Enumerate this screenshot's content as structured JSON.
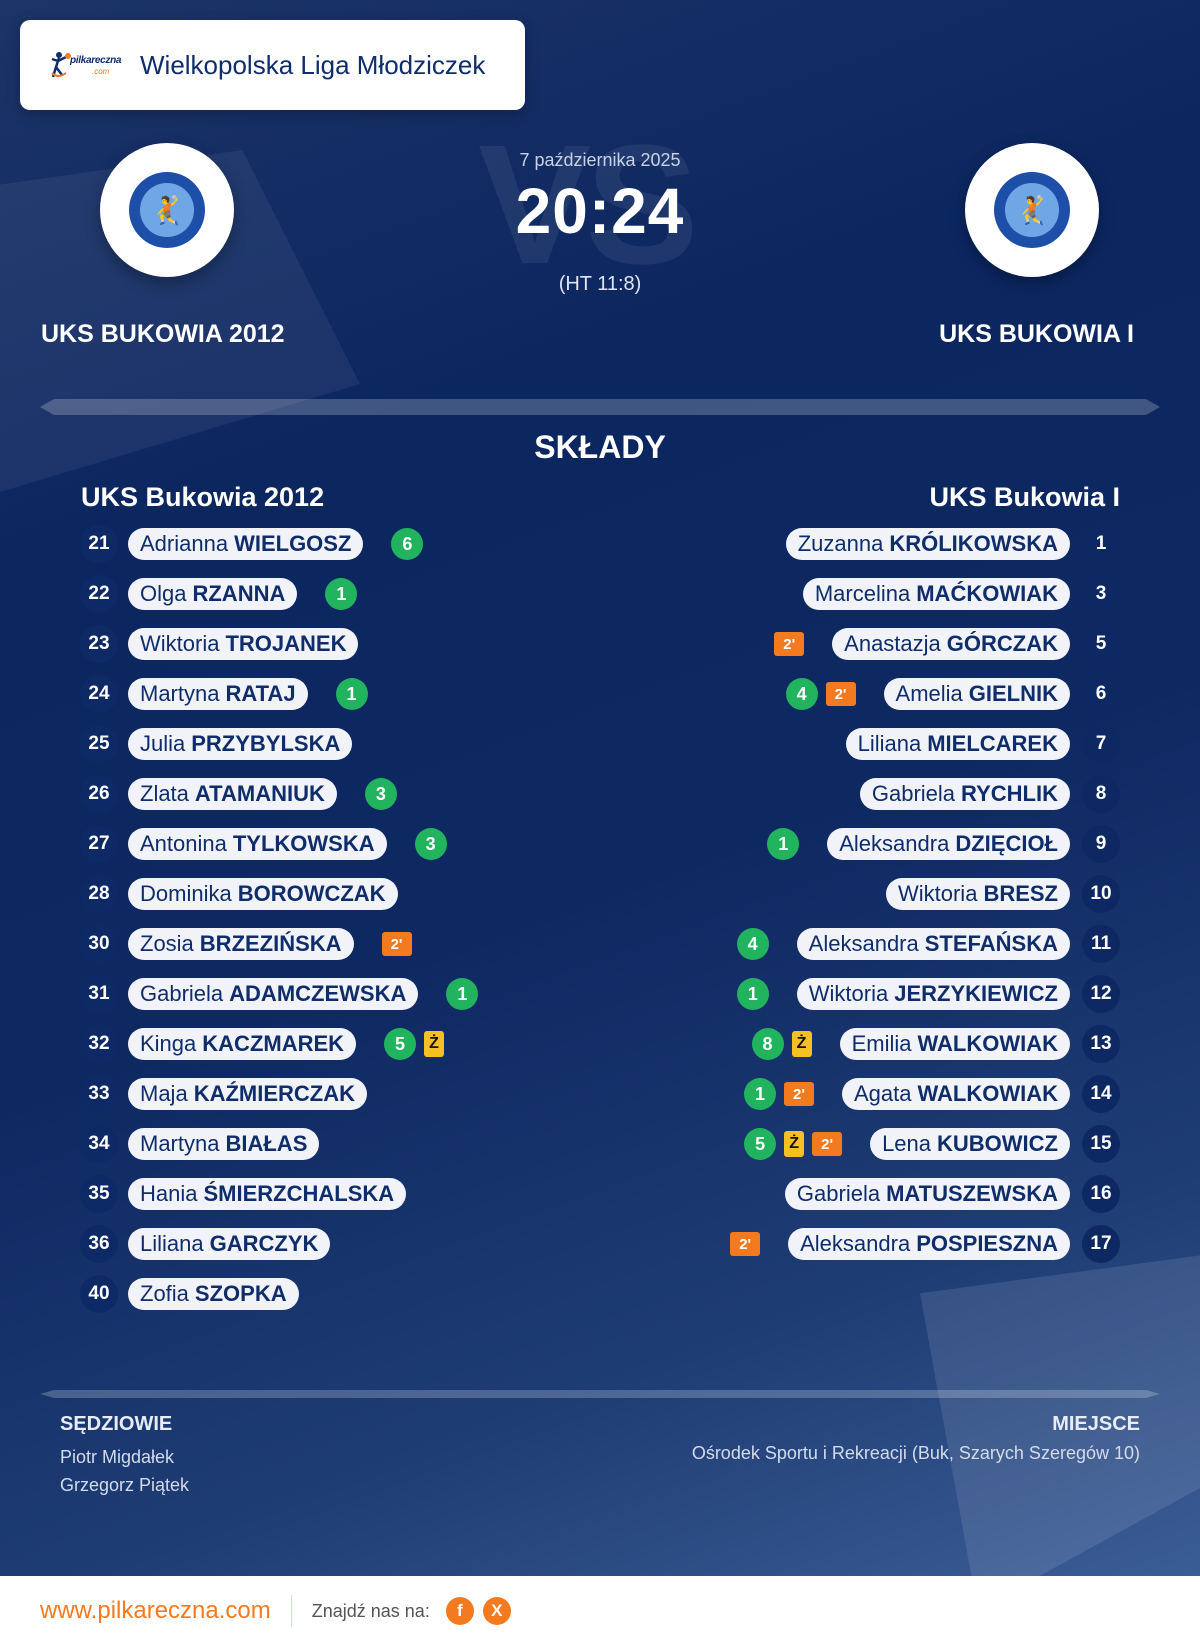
{
  "header": {
    "brand_logo_text": "pilkareczna",
    "brand_logo_suffix": ".com",
    "league_title": "Wielkopolska Liga Młodziczek"
  },
  "match": {
    "date": "7 października 2025",
    "score": "20:24",
    "halftime": "(HT 11:8)",
    "watermark": "VS",
    "home_team": "UKS BUKOWIA 2012",
    "away_team": "UKS BUKOWIA I"
  },
  "lineups": {
    "title": "SKŁADY",
    "home": {
      "name": "UKS Bukowia 2012",
      "players": [
        {
          "number": "21",
          "first": "Adrianna",
          "last": "WIELGOSZ",
          "goals": "6",
          "yellow": null,
          "suspension": null
        },
        {
          "number": "22",
          "first": "Olga",
          "last": "RZANNA",
          "goals": "1",
          "yellow": null,
          "suspension": null
        },
        {
          "number": "23",
          "first": "Wiktoria",
          "last": "TROJANEK",
          "goals": null,
          "yellow": null,
          "suspension": null
        },
        {
          "number": "24",
          "first": "Martyna",
          "last": "RATAJ",
          "goals": "1",
          "yellow": null,
          "suspension": null
        },
        {
          "number": "25",
          "first": "Julia",
          "last": "PRZYBYLSKA",
          "goals": null,
          "yellow": null,
          "suspension": null
        },
        {
          "number": "26",
          "first": "Zlata",
          "last": "ATAMANIUK",
          "goals": "3",
          "yellow": null,
          "suspension": null
        },
        {
          "number": "27",
          "first": "Antonina",
          "last": "TYLKOWSKA",
          "goals": "3",
          "yellow": null,
          "suspension": null
        },
        {
          "number": "28",
          "first": "Dominika",
          "last": "BOROWCZAK",
          "goals": null,
          "yellow": null,
          "suspension": null
        },
        {
          "number": "30",
          "first": "Zosia",
          "last": "BRZEZIŃSKA",
          "goals": null,
          "yellow": null,
          "suspension": "2'"
        },
        {
          "number": "31",
          "first": "Gabriela",
          "last": "ADAMCZEWSKA",
          "goals": "1",
          "yellow": null,
          "suspension": null
        },
        {
          "number": "32",
          "first": "Kinga",
          "last": "KACZMAREK",
          "goals": "5",
          "yellow": "Ż",
          "suspension": null
        },
        {
          "number": "33",
          "first": "Maja",
          "last": "KAŹMIERCZAK",
          "goals": null,
          "yellow": null,
          "suspension": null
        },
        {
          "number": "34",
          "first": "Martyna",
          "last": "BIAŁAS",
          "goals": null,
          "yellow": null,
          "suspension": null
        },
        {
          "number": "35",
          "first": "Hania",
          "last": "ŚMIERZCHALSKA",
          "goals": null,
          "yellow": null,
          "suspension": null
        },
        {
          "number": "36",
          "first": "Liliana",
          "last": "GARCZYK",
          "goals": null,
          "yellow": null,
          "suspension": null
        },
        {
          "number": "40",
          "first": "Zofia",
          "last": "SZOPKA",
          "goals": null,
          "yellow": null,
          "suspension": null
        }
      ]
    },
    "away": {
      "name": "UKS Bukowia I",
      "players": [
        {
          "number": "1",
          "first": "Zuzanna",
          "last": "KRÓLIKOWSKA",
          "goals": null,
          "yellow": null,
          "suspension": null
        },
        {
          "number": "3",
          "first": "Marcelina",
          "last": "MAĆKOWIAK",
          "goals": null,
          "yellow": null,
          "suspension": null
        },
        {
          "number": "5",
          "first": "Anastazja",
          "last": "GÓRCZAK",
          "goals": null,
          "yellow": null,
          "suspension": "2'"
        },
        {
          "number": "6",
          "first": "Amelia",
          "last": "GIELNIK",
          "goals": "4",
          "yellow": null,
          "suspension": "2'"
        },
        {
          "number": "7",
          "first": "Liliana",
          "last": "MIELCAREK",
          "goals": null,
          "yellow": null,
          "suspension": null
        },
        {
          "number": "8",
          "first": "Gabriela",
          "last": "RYCHLIK",
          "goals": null,
          "yellow": null,
          "suspension": null
        },
        {
          "number": "9",
          "first": "Aleksandra",
          "last": "DZIĘCIOŁ",
          "goals": "1",
          "yellow": null,
          "suspension": null
        },
        {
          "number": "10",
          "first": "Wiktoria",
          "last": "BRESZ",
          "goals": null,
          "yellow": null,
          "suspension": null
        },
        {
          "number": "11",
          "first": "Aleksandra",
          "last": "STEFAŃSKA",
          "goals": "4",
          "yellow": null,
          "suspension": null
        },
        {
          "number": "12",
          "first": "Wiktoria",
          "last": "JERZYKIEWICZ",
          "goals": "1",
          "yellow": null,
          "suspension": null
        },
        {
          "number": "13",
          "first": "Emilia",
          "last": "WALKOWIAK",
          "goals": "8",
          "yellow": "Ż",
          "suspension": null
        },
        {
          "number": "14",
          "first": "Agata",
          "last": "WALKOWIAK",
          "goals": "1",
          "yellow": null,
          "suspension": "2'"
        },
        {
          "number": "15",
          "first": "Lena",
          "last": "KUBOWICZ",
          "goals": "5",
          "yellow": "Ż",
          "suspension": "2'"
        },
        {
          "number": "16",
          "first": "Gabriela",
          "last": "MATUSZEWSKA",
          "goals": null,
          "yellow": null,
          "suspension": null
        },
        {
          "number": "17",
          "first": "Aleksandra",
          "last": "POSPIESZNA",
          "goals": null,
          "yellow": null,
          "suspension": "2'"
        }
      ]
    }
  },
  "officials": {
    "label": "SĘDZIOWIE",
    "referees": [
      "Piotr Migdałek",
      "Grzegorz Piątek"
    ]
  },
  "venue": {
    "label": "MIEJSCE",
    "name": "Ośrodek Sportu i Rekreacji (Buk, Szarych Szeregów 10)"
  },
  "footer": {
    "site": "www.pilkareczna.com",
    "find_us": "Znajdź nas na:",
    "social": [
      {
        "name": "facebook",
        "glyph": "f"
      },
      {
        "name": "x",
        "glyph": "X"
      }
    ]
  },
  "colors": {
    "goal_badge": "#22b35e",
    "suspension_badge": "#f47a1f",
    "yellow_card": "#f6bf22",
    "navy": "#0f2d6b",
    "accent": "#f47a1f"
  }
}
